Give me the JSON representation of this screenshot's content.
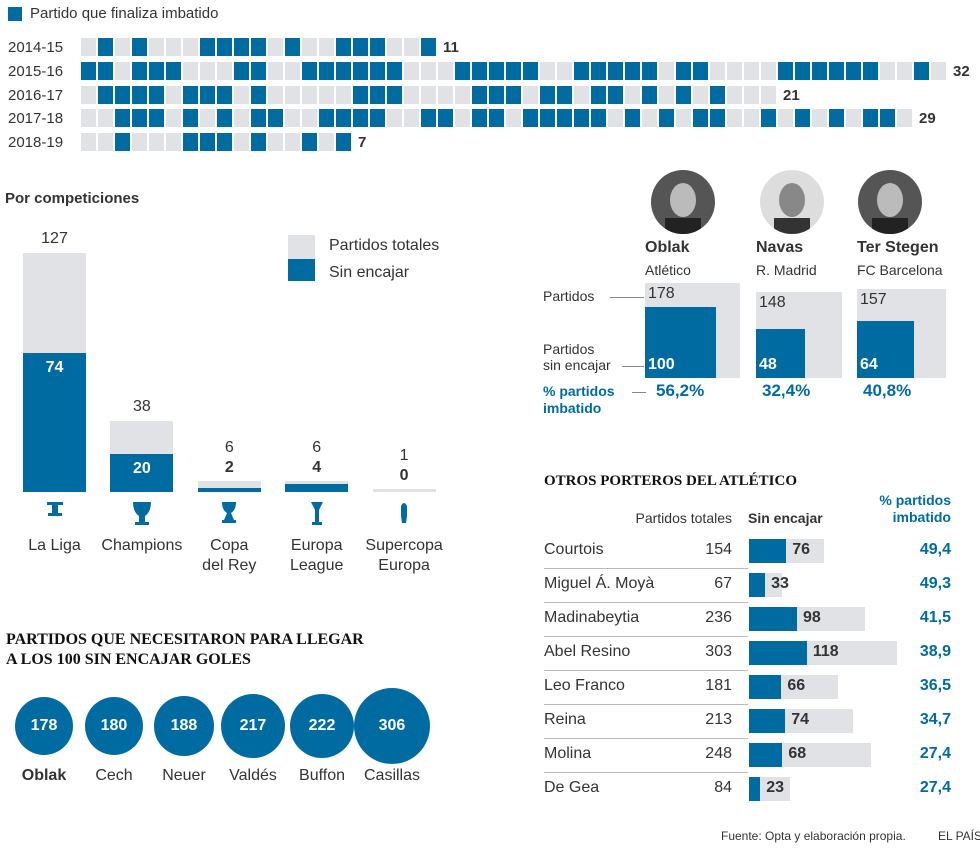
{
  "colors": {
    "blue": "#006ba1",
    "gray": "#e1e2e5",
    "text": "#333333"
  },
  "legend_top": {
    "label": "Partido que finaliza imbatido"
  },
  "chart_data": [
    {
      "type": "table",
      "seasons": [
        {
          "label": "2014-15",
          "total": "11",
          "matches": "010100011110100111001"
        },
        {
          "label": "2015-16",
          "total": "32",
          "matches": "110111000110011111100011111001111101100001111110010"
        },
        {
          "label": "2016-17",
          "total": "21",
          "matches": "01111011101000001110000111011011010101000"
        },
        {
          "label": "2017-18",
          "total": "29",
          "matches": "0011101010110011110011011011111010101100101010110"
        },
        {
          "label": "2018-19",
          "total": "7",
          "matches": "0010001110100101"
        }
      ]
    },
    {
      "type": "bar",
      "title": "Por competiciones",
      "categories": [
        "La Liga",
        "Champions",
        "Copa del Rey",
        "Europa League",
        "Supercopa Europa"
      ],
      "category_lines": [
        [
          "La Liga"
        ],
        [
          "Champions"
        ],
        [
          "Copa",
          "del Rey"
        ],
        [
          "Europa",
          "League"
        ],
        [
          "Supercopa",
          "Europa"
        ]
      ],
      "icons": [
        "liga-trophy-icon",
        "champions-trophy-icon",
        "copa-trophy-icon",
        "europa-league-trophy-icon",
        "supercopa-trophy-icon"
      ],
      "series": [
        {
          "name": "Partidos totales",
          "values": [
            127,
            38,
            6,
            6,
            1
          ]
        },
        {
          "name": "Sin encajar",
          "values": [
            74,
            20,
            2,
            4,
            0
          ]
        }
      ]
    },
    {
      "type": "bar",
      "title": "PARTIDOS QUE NECESITARON PARA LLEGAR A LOS 100 SIN ENCAJAR GOLES",
      "title_lines": [
        "PARTIDOS QUE NECESITARON PARA LLEGAR",
        "A LOS 100 SIN ENCAJAR GOLES"
      ],
      "categories": [
        "Oblak",
        "Cech",
        "Neuer",
        "Valdés",
        "Buffon",
        "Casillas"
      ],
      "values": [
        178,
        180,
        188,
        217,
        222,
        306
      ]
    },
    {
      "type": "bar",
      "labels": {
        "total": "Partidos",
        "clean": [
          "Partidos",
          "sin encajar"
        ],
        "pct": [
          "% partidos",
          "imbatido"
        ]
      },
      "keepers": [
        {
          "name": "Oblak",
          "team": "Atlético",
          "total": 178,
          "clean": 100,
          "pct": "56,2%"
        },
        {
          "name": "Navas",
          "team": "R. Madrid",
          "total": 148,
          "clean": 48,
          "pct": "32,4%"
        },
        {
          "name": "Ter Stegen",
          "team": "FC Barcelona",
          "total": 157,
          "clean": 64,
          "pct": "40,8%"
        }
      ]
    },
    {
      "type": "table",
      "title": "OTROS PORTEROS DEL ATLÉTICO",
      "headers": {
        "total": "Partidos totales",
        "clean": "Sin encajar",
        "pct": [
          "% partidos",
          "imbatido"
        ]
      },
      "rows": [
        {
          "name": "Courtois",
          "total": 154,
          "clean": 76,
          "pct": "49,4"
        },
        {
          "name": "Miguel Á. Moyà",
          "total": 67,
          "clean": 33,
          "pct": "49,3"
        },
        {
          "name": "Madinabeytia",
          "total": 236,
          "clean": 98,
          "pct": "41,5"
        },
        {
          "name": "Abel Resino",
          "total": 303,
          "clean": 118,
          "pct": "38,9"
        },
        {
          "name": "Leo Franco",
          "total": 181,
          "clean": 66,
          "pct": "36,5"
        },
        {
          "name": "Reina",
          "total": 213,
          "clean": 74,
          "pct": "34,7"
        },
        {
          "name": "Molina",
          "total": 248,
          "clean": 68,
          "pct": "27,4"
        },
        {
          "name": "De Gea",
          "total": 84,
          "clean": 23,
          "pct": "27,4"
        }
      ]
    }
  ],
  "footer": {
    "source": "Fuente: Opta y elaboración propia.",
    "brand": "EL PAÍS"
  }
}
